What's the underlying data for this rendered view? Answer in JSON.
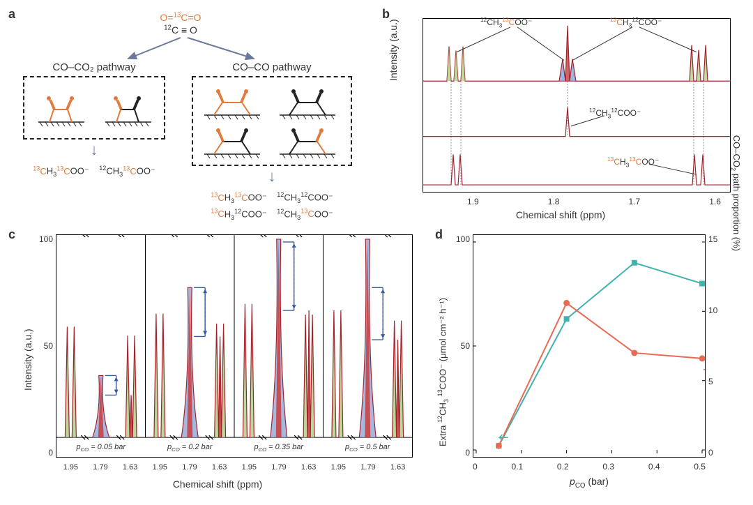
{
  "panel_a": {
    "label": "a",
    "reactant_top": "O=¹³C=O",
    "reactant_bottom": "¹²C ≡ O",
    "pathway_left": {
      "title": "CO–CO₂ pathway",
      "product1": "¹³CH₃¹³COO⁻",
      "product2": "¹²CH₃¹³COO⁻"
    },
    "pathway_right": {
      "title": "CO–CO pathway",
      "product1": "¹³CH₃¹³COO⁻",
      "product2": "¹²CH₃¹²COO⁻",
      "product3": "¹³CH₃¹²COO⁻",
      "product4": "¹²CH₃¹³COO⁻"
    },
    "colors": {
      "orange": "#e07b3c",
      "black": "#222222",
      "arrow": "#6b7a99"
    }
  },
  "panel_b": {
    "label": "b",
    "y_label": "Intensity (a.u.)",
    "x_label": "Chemical shift (ppm)",
    "x_ticks": [
      "1.9",
      "1.8",
      "1.7",
      "1.6"
    ],
    "annotations": {
      "top_left": "¹²CH₃¹³COO⁻",
      "top_right": "¹³CH₃¹²COO⁻",
      "mid_center": "¹²CH₃¹²COO⁻",
      "bot_right": "¹³CH₃¹³COO⁻"
    },
    "colors": {
      "line": "#a3212b",
      "green_fill": "#a6c97a",
      "blue_fill": "#8aa0d4",
      "red_fill": "#c93c3c"
    },
    "spectra": {
      "top_peaks_x": [
        0.09,
        0.11,
        0.13,
        0.45,
        0.47,
        0.49,
        0.88,
        0.9,
        0.92
      ],
      "top_peaks_h": [
        0.6,
        0.52,
        0.6,
        0.4,
        0.95,
        0.4,
        0.62,
        0.54,
        0.62
      ],
      "mid_peak_x": 0.47,
      "mid_peak_h": 0.5,
      "bot_peaks_x": [
        0.1,
        0.12,
        0.89,
        0.91
      ],
      "bot_peaks_h": [
        0.55,
        0.55,
        0.55,
        0.55
      ]
    }
  },
  "panel_c": {
    "label": "c",
    "y_label": "Intensity (a.u.)",
    "x_label": "Chemical shift (ppm)",
    "y_ticks": [
      "0",
      "50",
      "100"
    ],
    "x_ticks_each": [
      "1.95",
      "1.79",
      "1.63"
    ],
    "subpanel_titles": [
      "pCO = 0.05 bar",
      "pCO = 0.2 bar",
      "pCO = 0.35 bar",
      "pCO = 0.5 bar"
    ],
    "colors": {
      "line": "#a3212b",
      "green_fill": "#a6c97a",
      "blue_fill": "#8aa0d4",
      "red_fill": "#c93c3c",
      "divider": "#000000",
      "bracket": "#3a5aa0"
    },
    "subpanels": [
      {
        "green_h": 68,
        "blue_h": 38,
        "red_h": 26,
        "bracket_y1": 38,
        "bracket_y2": 26
      },
      {
        "green_h": 76,
        "blue_h": 92,
        "red_h": 62,
        "bracket_y1": 92,
        "bracket_y2": 62
      },
      {
        "green_h": 82,
        "blue_h": 120,
        "red_h": 78,
        "bracket_y1": 120,
        "bracket_y2": 78,
        "clipped": true
      },
      {
        "green_h": 78,
        "blue_h": 120,
        "red_h": 60,
        "bracket_y1": 92,
        "bracket_y2": 60,
        "clipped": true
      }
    ]
  },
  "panel_d": {
    "label": "d",
    "y_left_label": "Extra ¹²CH₃ ¹³COO⁻ (μmol cm⁻² h⁻¹)",
    "y_right_label": "CO–CO₂ path proportion (%)",
    "x_label": "pCO (bar)",
    "x_ticks": [
      "0",
      "0.1",
      "0.2",
      "0.3",
      "0.4",
      "0.5"
    ],
    "y_left": {
      "min": 0,
      "max": 100,
      "ticks": [
        "0",
        "50",
        "100"
      ]
    },
    "y_right": {
      "min": 0,
      "max": 15,
      "ticks": [
        "0",
        "5",
        "10",
        "15"
      ]
    },
    "series": [
      {
        "name": "extra",
        "color": "#3fb3ad",
        "marker": "square",
        "axis": "left",
        "points": [
          {
            "x": 0.05,
            "y": 2
          },
          {
            "x": 0.2,
            "y": 63
          },
          {
            "x": 0.35,
            "y": 90
          },
          {
            "x": 0.5,
            "y": 80
          }
        ]
      },
      {
        "name": "proportion",
        "color": "#e86a52",
        "marker": "circle",
        "axis": "right",
        "points": [
          {
            "x": 0.05,
            "y": 0.3
          },
          {
            "x": 0.2,
            "y": 10.6
          },
          {
            "x": 0.35,
            "y": 7.0
          },
          {
            "x": 0.5,
            "y": 6.6
          }
        ]
      }
    ]
  }
}
